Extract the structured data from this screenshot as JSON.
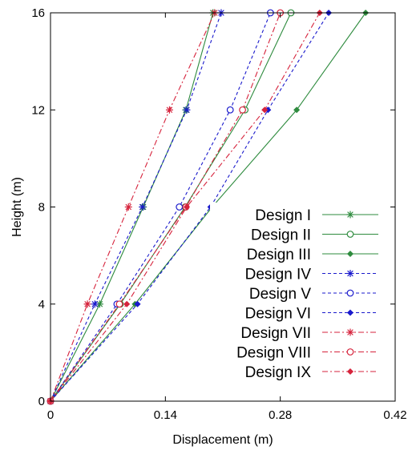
{
  "chart_data": {
    "type": "line",
    "title": "",
    "xlabel": "Displacement (m)",
    "ylabel": "Height (m)",
    "xlim": [
      0,
      0.42
    ],
    "ylim": [
      0,
      16
    ],
    "xticks": [
      0,
      0.14,
      0.28,
      0.42
    ],
    "xtick_labels": [
      "0",
      "0.14",
      "0.28",
      "0.42"
    ],
    "yticks": [
      0,
      4,
      8,
      12,
      16
    ],
    "ytick_labels": [
      "0",
      "4",
      "8",
      "12",
      "16"
    ],
    "grid": false,
    "legend_position": "bottom-right",
    "y": [
      0,
      4,
      8,
      12,
      16
    ],
    "series": [
      {
        "name": "Design I",
        "color": "#2e8b3e",
        "dash": "solid",
        "marker": "asterisk",
        "x": [
          0,
          0.06,
          0.113,
          0.165,
          0.198
        ]
      },
      {
        "name": "Design II",
        "color": "#2e8b3e",
        "dash": "solid",
        "marker": "circle",
        "x": [
          0,
          0.085,
          0.164,
          0.237,
          0.293
        ]
      },
      {
        "name": "Design III",
        "color": "#2e8b3e",
        "dash": "solid",
        "marker": "diamond",
        "x": [
          0,
          0.103,
          0.197,
          0.3,
          0.384
        ]
      },
      {
        "name": "Design IV",
        "color": "#1a1acc",
        "dash": "dashed",
        "marker": "asterisk",
        "x": [
          0,
          0.054,
          0.112,
          0.166,
          0.208
        ]
      },
      {
        "name": "Design V",
        "color": "#1a1acc",
        "dash": "dashed",
        "marker": "circle",
        "x": [
          0,
          0.081,
          0.157,
          0.219,
          0.268
        ]
      },
      {
        "name": "Design VI",
        "color": "#1a1acc",
        "dash": "dashed",
        "marker": "diamond",
        "x": [
          0,
          0.106,
          0.195,
          0.265,
          0.339
        ]
      },
      {
        "name": "Design VII",
        "color": "#d6233c",
        "dash": "dashdot",
        "marker": "asterisk",
        "x": [
          0,
          0.045,
          0.095,
          0.145,
          0.2
        ]
      },
      {
        "name": "Design VIII",
        "color": "#d6233c",
        "dash": "dashdot",
        "marker": "circle",
        "x": [
          0,
          0.084,
          0.165,
          0.234,
          0.28
        ]
      },
      {
        "name": "Design IX",
        "color": "#d6233c",
        "dash": "dashdot",
        "marker": "diamond",
        "x": [
          0,
          0.093,
          0.166,
          0.261,
          0.328
        ]
      }
    ]
  }
}
